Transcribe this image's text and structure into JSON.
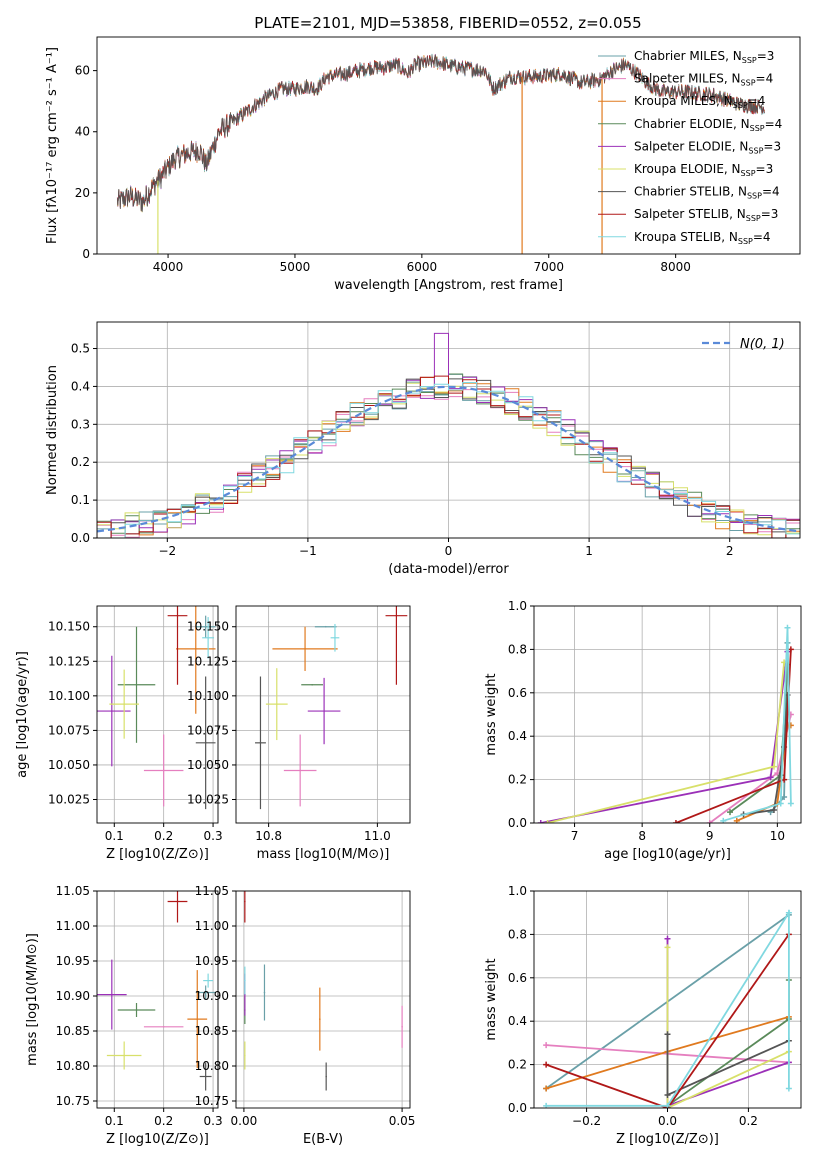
{
  "figure_title": "PLATE=2101, MJD=53858, FIBERID=0552, z=0.055",
  "colors": {
    "chabrier_miles": "#6aa0a8",
    "salpeter_miles": "#e57fbf",
    "kroupa_miles": "#e07a1f",
    "chabrier_elodie": "#5a8a5a",
    "salpeter_elodie": "#9b30b8",
    "kroupa_elodie": "#d8e06a",
    "chabrier_stelib": "#555555",
    "salpeter_stelib": "#b01818",
    "kroupa_stelib": "#80d8e0",
    "gauss": "#5a8ad8",
    "grid": "#b0b0b0"
  },
  "chart_data": [
    {
      "id": "spectrum",
      "type": "line",
      "title": "PLATE=2101, MJD=53858, FIBERID=0552, z=0.055",
      "xlabel": "wavelength [Angstrom, rest frame]",
      "ylabel": "Flux [fλ10⁻¹⁷ erg cm⁻² s⁻¹ A⁻¹]",
      "xlim": [
        3440,
        8980
      ],
      "ylim": [
        0,
        71
      ],
      "xticks": [
        "4000",
        "5000",
        "6000",
        "7000",
        "8000"
      ],
      "yticks": [
        "0",
        "20",
        "40",
        "60"
      ],
      "grid": false,
      "legend_position": "top-right",
      "continuum_points": [
        [
          3600,
          17
        ],
        [
          3700,
          19
        ],
        [
          3800,
          17
        ],
        [
          3860,
          21
        ],
        [
          3940,
          25
        ],
        [
          4050,
          31
        ],
        [
          4150,
          33
        ],
        [
          4250,
          34
        ],
        [
          4300,
          29
        ],
        [
          4400,
          40
        ],
        [
          4500,
          43
        ],
        [
          4600,
          46
        ],
        [
          4700,
          49
        ],
        [
          4800,
          52
        ],
        [
          4900,
          54
        ],
        [
          5000,
          54
        ],
        [
          5100,
          55
        ],
        [
          5170,
          54
        ],
        [
          5250,
          58
        ],
        [
          5400,
          59
        ],
        [
          5500,
          60
        ],
        [
          5600,
          61
        ],
        [
          5700,
          61
        ],
        [
          5800,
          62
        ],
        [
          5890,
          59
        ],
        [
          5950,
          62
        ],
        [
          6100,
          63
        ],
        [
          6300,
          61
        ],
        [
          6500,
          60
        ],
        [
          6563,
          54
        ],
        [
          6700,
          58
        ],
        [
          6900,
          58
        ],
        [
          7100,
          59
        ],
        [
          7250,
          56
        ],
        [
          7400,
          57
        ],
        [
          7500,
          60
        ],
        [
          7600,
          62
        ],
        [
          7700,
          59
        ],
        [
          7800,
          55
        ],
        [
          7900,
          53
        ],
        [
          8100,
          53
        ],
        [
          8300,
          52
        ],
        [
          8500,
          49
        ],
        [
          8700,
          48
        ]
      ],
      "drops": [
        {
          "series": "kroupa_elodie",
          "x": 3920
        },
        {
          "series": "kroupa_miles",
          "x": 6790
        },
        {
          "series": "kroupa_miles",
          "x": 7420
        }
      ],
      "series": [
        {
          "key": "chabrier_miles",
          "name": "Chabrier MILES, N",
          "nssp": "3"
        },
        {
          "key": "salpeter_miles",
          "name": "Salpeter MILES, N",
          "nssp": "4"
        },
        {
          "key": "kroupa_miles",
          "name": "Kroupa MILES, N",
          "nssp": "4"
        },
        {
          "key": "chabrier_elodie",
          "name": "Chabrier ELODIE, N",
          "nssp": "4"
        },
        {
          "key": "salpeter_elodie",
          "name": "Salpeter ELODIE, N",
          "nssp": "3"
        },
        {
          "key": "kroupa_elodie",
          "name": "Kroupa ELODIE, N",
          "nssp": "3"
        },
        {
          "key": "chabrier_stelib",
          "name": "Chabrier STELIB, N",
          "nssp": "4"
        },
        {
          "key": "salpeter_stelib",
          "name": "Salpeter STELIB, N",
          "nssp": "3"
        },
        {
          "key": "kroupa_stelib",
          "name": "Kroupa STELIB, N",
          "nssp": "4"
        }
      ],
      "legend_subscript": "SSP"
    },
    {
      "id": "residual_histogram",
      "type": "bar",
      "xlabel": "(data-model)/error",
      "ylabel": "Normed distribution",
      "xlim": [
        -2.5,
        2.5
      ],
      "ylim": [
        0,
        0.57
      ],
      "xticks": [
        "-2",
        "-1",
        "0",
        "1",
        "2"
      ],
      "yticks": [
        "0.0",
        "0.1",
        "0.2",
        "0.3",
        "0.4",
        "0.5"
      ],
      "grid": true,
      "bin_width": 0.1,
      "gauss_label": "N(0, 1)",
      "legend_position": "top-right",
      "series_keys": [
        "chabrier_miles",
        "salpeter_miles",
        "kroupa_miles",
        "chabrier_elodie",
        "salpeter_elodie",
        "kroupa_elodie",
        "chabrier_stelib",
        "salpeter_stelib",
        "kroupa_stelib"
      ]
    },
    {
      "id": "age_vs_Z",
      "type": "scatter",
      "xlabel": "Z [log10(Z/Z⊙)]",
      "ylabel": "age  [log10(age/yr)]",
      "xlim": [
        0.065,
        0.31
      ],
      "ylim": [
        10.008,
        10.165
      ],
      "xticks": [
        "0.1",
        "0.2",
        "0.3"
      ],
      "yticks": [
        "10.025",
        "10.050",
        "10.075",
        "10.100",
        "10.125",
        "10.150"
      ],
      "grid": true,
      "points": [
        {
          "key": "chabrier_miles",
          "x": 0.285,
          "y": 10.15,
          "xerr": 0.02,
          "yerr": 0.008
        },
        {
          "key": "salpeter_miles",
          "x": 0.2,
          "y": 10.046,
          "xerr": 0.04,
          "yerr": 0.026
        },
        {
          "key": "kroupa_miles",
          "x": 0.265,
          "y": 10.134,
          "xerr": 0.04,
          "yerr": 0.047
        },
        {
          "key": "chabrier_elodie",
          "x": 0.145,
          "y": 10.108,
          "xerr": 0.038,
          "yerr": 0.042
        },
        {
          "key": "salpeter_elodie",
          "x": 0.095,
          "y": 10.089,
          "xerr": 0.038,
          "yerr": 0.04
        },
        {
          "key": "kroupa_elodie",
          "x": 0.12,
          "y": 10.094,
          "xerr": 0.03,
          "yerr": 0.025
        },
        {
          "key": "chabrier_stelib",
          "x": 0.285,
          "y": 10.066,
          "xerr": 0.02,
          "yerr": 0.048
        },
        {
          "key": "salpeter_stelib",
          "x": 0.228,
          "y": 10.158,
          "xerr": 0.02,
          "yerr": 0.05
        },
        {
          "key": "kroupa_stelib",
          "x": 0.29,
          "y": 10.142,
          "xerr": 0.012,
          "yerr": 0.015
        }
      ]
    },
    {
      "id": "age_vs_mass",
      "type": "scatter",
      "xlabel": "mass [log10(M/M⊙)]",
      "ylabel": "",
      "xlim": [
        10.74,
        11.06
      ],
      "ylim": [
        10.008,
        10.165
      ],
      "xticks": [
        "10.8",
        "11.0"
      ],
      "yticks": [
        "10.025",
        "10.050",
        "10.075",
        "10.100",
        "10.125",
        "10.150"
      ],
      "grid": true,
      "points": [
        {
          "key": "chabrier_miles",
          "x": 10.905,
          "y": 10.15,
          "xerr": 0.02,
          "yerr": 0.0
        },
        {
          "key": "salpeter_miles",
          "x": 10.858,
          "y": 10.046,
          "xerr": 0.03,
          "yerr": 0.026
        },
        {
          "key": "kroupa_miles",
          "x": 10.867,
          "y": 10.134,
          "xerr": 0.06,
          "yerr": 0.016
        },
        {
          "key": "chabrier_elodie",
          "x": 10.88,
          "y": 10.108,
          "xerr": 0.02,
          "yerr": 0.0
        },
        {
          "key": "salpeter_elodie",
          "x": 10.902,
          "y": 10.089,
          "xerr": 0.03,
          "yerr": 0.024
        },
        {
          "key": "kroupa_elodie",
          "x": 10.815,
          "y": 10.094,
          "xerr": 0.02,
          "yerr": 0.026
        },
        {
          "key": "chabrier_stelib",
          "x": 10.785,
          "y": 10.066,
          "xerr": 0.01,
          "yerr": 0.048
        },
        {
          "key": "salpeter_stelib",
          "x": 11.035,
          "y": 10.158,
          "xerr": 0.02,
          "yerr": 0.05
        },
        {
          "key": "kroupa_stelib",
          "x": 10.922,
          "y": 10.142,
          "xerr": 0.008,
          "yerr": 0.01
        }
      ]
    },
    {
      "id": "weight_vs_age",
      "type": "line",
      "xlabel": "age  [log10(age/yr)]",
      "ylabel": "mass weight",
      "xlim": [
        6.4,
        10.35
      ],
      "ylim": [
        0,
        1
      ],
      "xticks": [
        "7",
        "8",
        "9",
        "10"
      ],
      "yticks": [
        "0.0",
        "0.2",
        "0.4",
        "0.6",
        "0.8",
        "1.0"
      ],
      "grid": true,
      "series": [
        {
          "key": "chabrier_miles",
          "x": [
            9.9,
            10.1,
            10.15
          ],
          "y": [
            0.05,
            0.12,
            0.83
          ]
        },
        {
          "key": "salpeter_miles",
          "x": [
            9.0,
            10.0,
            10.2
          ],
          "y": [
            0.0,
            0.23,
            0.5
          ]
        },
        {
          "key": "kroupa_miles",
          "x": [
            9.4,
            10.0,
            10.15,
            10.2
          ],
          "y": [
            0.01,
            0.09,
            0.45,
            0.45
          ]
        },
        {
          "key": "chabrier_elodie",
          "x": [
            9.3,
            10.05,
            10.15
          ],
          "y": [
            0.05,
            0.22,
            0.73
          ]
        },
        {
          "key": "salpeter_elodie",
          "x": [
            6.5,
            9.9,
            10.15
          ],
          "y": [
            0.0,
            0.21,
            0.79
          ]
        },
        {
          "key": "kroupa_elodie",
          "x": [
            6.6,
            9.95,
            10.1
          ],
          "y": [
            0.0,
            0.26,
            0.74
          ]
        },
        {
          "key": "chabrier_stelib",
          "x": [
            9.5,
            9.95,
            10.1,
            10.15
          ],
          "y": [
            0.04,
            0.06,
            0.35,
            0.59
          ]
        },
        {
          "key": "salpeter_stelib",
          "x": [
            8.5,
            10.1,
            10.2
          ],
          "y": [
            0.0,
            0.2,
            0.8
          ]
        },
        {
          "key": "kroupa_stelib",
          "x": [
            9.2,
            10.05,
            10.15,
            10.2
          ],
          "y": [
            0.01,
            0.09,
            0.9,
            0.09
          ]
        }
      ]
    },
    {
      "id": "mass_vs_Z",
      "type": "scatter",
      "xlabel": "Z [log10(Z/Z⊙)]",
      "ylabel": "mass [log10(M/M⊙)]",
      "xlim": [
        0.065,
        0.31
      ],
      "ylim": [
        10.74,
        11.05
      ],
      "xticks": [
        "0.1",
        "0.2",
        "0.3"
      ],
      "yticks": [
        "10.75",
        "10.80",
        "10.85",
        "10.90",
        "10.95",
        "11.00",
        "11.05"
      ],
      "grid": true,
      "points": [
        {
          "key": "chabrier_miles",
          "x": 0.285,
          "y": 10.905,
          "xerr": 0.02,
          "yerr": 0.01
        },
        {
          "key": "salpeter_miles",
          "x": 0.2,
          "y": 10.856,
          "xerr": 0.04,
          "yerr": 0.0
        },
        {
          "key": "kroupa_miles",
          "x": 0.268,
          "y": 10.867,
          "xerr": 0.02,
          "yerr": 0.07
        },
        {
          "key": "chabrier_elodie",
          "x": 0.145,
          "y": 10.88,
          "xerr": 0.038,
          "yerr": 0.01
        },
        {
          "key": "salpeter_elodie",
          "x": 0.095,
          "y": 10.902,
          "xerr": 0.03,
          "yerr": 0.05
        },
        {
          "key": "kroupa_elodie",
          "x": 0.12,
          "y": 10.815,
          "xerr": 0.035,
          "yerr": 0.02
        },
        {
          "key": "chabrier_stelib",
          "x": 0.285,
          "y": 10.785,
          "xerr": 0.012,
          "yerr": 0.02
        },
        {
          "key": "salpeter_stelib",
          "x": 0.228,
          "y": 11.035,
          "xerr": 0.02,
          "yerr": 0.03
        },
        {
          "key": "kroupa_stelib",
          "x": 0.29,
          "y": 10.922,
          "xerr": 0.01,
          "yerr": 0.01
        }
      ]
    },
    {
      "id": "mass_vs_ebv",
      "type": "scatter",
      "xlabel": "E(B-V)",
      "ylabel": "",
      "xlim": [
        -0.0025,
        0.0525
      ],
      "ylim": [
        10.74,
        11.05
      ],
      "xticks": [
        "0.00",
        "0.05"
      ],
      "yticks": [
        "10.75",
        "10.80",
        "10.85",
        "10.90",
        "10.95",
        "11.00",
        "11.05"
      ],
      "grid": true,
      "points": [
        {
          "key": "chabrier_miles",
          "x": 0.0065,
          "y": 10.905,
          "xerr": 0.0,
          "yerr": 0.04
        },
        {
          "key": "salpeter_miles",
          "x": 0.05,
          "y": 10.856,
          "xerr": 0.0,
          "yerr": 0.03
        },
        {
          "key": "kroupa_miles",
          "x": 0.024,
          "y": 10.867,
          "xerr": 0.0,
          "yerr": 0.045
        },
        {
          "key": "chabrier_elodie",
          "x": 0.0003,
          "y": 10.88,
          "xerr": 0.0,
          "yerr": 0.02
        },
        {
          "key": "salpeter_elodie",
          "x": 0.0003,
          "y": 10.902,
          "xerr": 0.0,
          "yerr": 0.03
        },
        {
          "key": "kroupa_elodie",
          "x": 0.0003,
          "y": 10.815,
          "xerr": 0.0,
          "yerr": 0.02
        },
        {
          "key": "chabrier_stelib",
          "x": 0.026,
          "y": 10.785,
          "xerr": 0.0,
          "yerr": 0.02
        },
        {
          "key": "salpeter_stelib",
          "x": 0.0003,
          "y": 11.035,
          "xerr": 0.0,
          "yerr": 0.03
        },
        {
          "key": "kroupa_stelib",
          "x": 0.0003,
          "y": 10.922,
          "xerr": 0.0,
          "yerr": 0.02
        }
      ]
    },
    {
      "id": "weight_vs_Z",
      "type": "line",
      "xlabel": "Z [log10(Z/Z⊙)]",
      "ylabel": "mass weight",
      "xlim": [
        -0.33,
        0.33
      ],
      "ylim": [
        0,
        1
      ],
      "xticks": [
        "-0.2",
        "0.0",
        "0.2"
      ],
      "yticks": [
        "0.0",
        "0.2",
        "0.4",
        "0.6",
        "0.8",
        "1.0"
      ],
      "grid": true,
      "series": [
        {
          "key": "chabrier_miles",
          "x": [
            -0.3,
            0.3
          ],
          "y": [
            0.09,
            0.89
          ]
        },
        {
          "key": "salpeter_miles",
          "x": [
            -0.3,
            0.3
          ],
          "y": [
            0.29,
            0.21
          ]
        },
        {
          "key": "kroupa_miles",
          "x": [
            -0.3,
            0.0,
            0.3
          ],
          "y": [
            0.09,
            0.26,
            0.42
          ]
        },
        {
          "key": "chabrier_elodie",
          "x": [
            0.0,
            0.3,
            0.3
          ],
          "y": [
            0.01,
            0.41,
            0.59
          ]
        },
        {
          "key": "salpeter_elodie",
          "x": [
            0.0,
            0.0,
            0.3
          ],
          "y": [
            0.78,
            0.01,
            0.21
          ]
        },
        {
          "key": "kroupa_elodie",
          "x": [
            0.0,
            0.0,
            0.3
          ],
          "y": [
            0.74,
            0.0,
            0.26
          ]
        },
        {
          "key": "chabrier_stelib",
          "x": [
            0.0,
            0.0,
            0.3
          ],
          "y": [
            0.34,
            0.06,
            0.31
          ]
        },
        {
          "key": "salpeter_stelib",
          "x": [
            -0.3,
            0.0,
            0.3
          ],
          "y": [
            0.2,
            0.0,
            0.8
          ]
        },
        {
          "key": "kroupa_stelib",
          "x": [
            -0.3,
            0.0,
            0.3,
            0.3
          ],
          "y": [
            0.01,
            0.01,
            0.9,
            0.09
          ]
        }
      ]
    }
  ]
}
